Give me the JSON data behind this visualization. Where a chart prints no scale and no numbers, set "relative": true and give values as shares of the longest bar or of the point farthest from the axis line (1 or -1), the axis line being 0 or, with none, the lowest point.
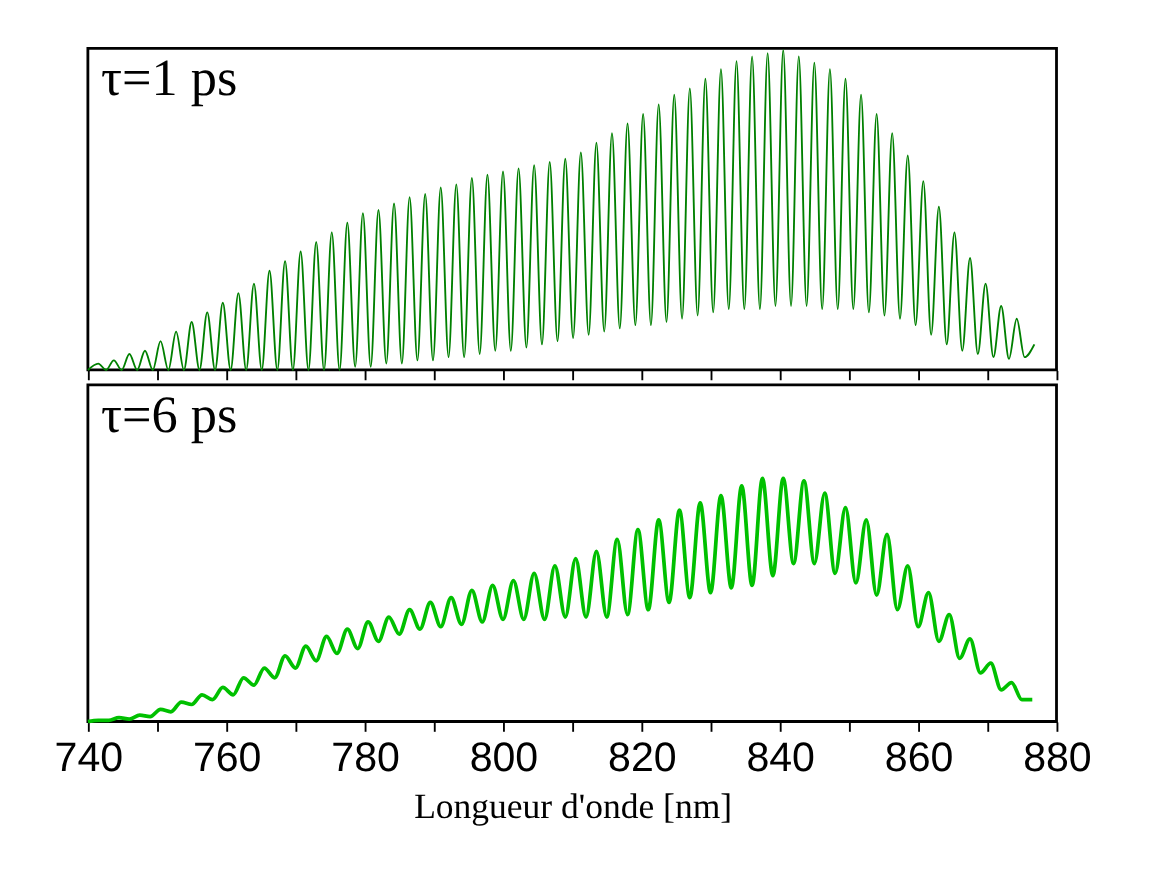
{
  "chart_data": [
    {
      "type": "line",
      "title": "τ=1 ps",
      "relative": true,
      "tick_labels": false,
      "line_style": "solid",
      "xlim": [
        740,
        880
      ],
      "xticks": [
        740,
        {
          "value": 750,
          "label": null
        },
        760,
        {
          "value": 770,
          "label": null
        },
        780,
        {
          "value": 790,
          "label": null
        },
        800,
        {
          "value": 810,
          "label": null
        },
        820,
        {
          "value": 830,
          "label": null
        },
        840,
        {
          "value": 850,
          "label": null
        },
        860,
        {
          "value": 870,
          "label": null
        },
        880
      ],
      "x": [
        740,
        741.5,
        742.63,
        743.75,
        744.88,
        746,
        747.13,
        748.25,
        749.38,
        750.5,
        751.63,
        752.75,
        753.88,
        755,
        756.13,
        757.25,
        758.38,
        759.5,
        760.63,
        761.75,
        762.88,
        764,
        765.13,
        766.25,
        767.38,
        768.5,
        769.63,
        770.75,
        771.88,
        773,
        774.13,
        775.25,
        776.38,
        777.5,
        778.63,
        779.75,
        780.88,
        782,
        783.13,
        784.25,
        785.38,
        786.5,
        787.63,
        788.75,
        789.88,
        791,
        792.13,
        793.25,
        794.38,
        795.5,
        796.63,
        797.75,
        798.88,
        800,
        801.13,
        802.25,
        803.38,
        804.5,
        805.63,
        806.75,
        807.88,
        809,
        810.13,
        811.25,
        812.38,
        813.5,
        814.63,
        815.75,
        816.88,
        818,
        819.13,
        820.25,
        821.38,
        822.5,
        823.63,
        824.75,
        825.88,
        827,
        828.13,
        829.25,
        830.38,
        831.5,
        832.63,
        833.75,
        834.88,
        836,
        837.13,
        838.25,
        839.38,
        840.5,
        841.63,
        842.75,
        843.88,
        845,
        846.13,
        847.25,
        848.38,
        849.5,
        850.63,
        851.75,
        852.88,
        854,
        855.13,
        856.25,
        857.38,
        858.5,
        859.63,
        860.75,
        861.88,
        863,
        864.13,
        865.25,
        866.38,
        867.5,
        868.63,
        869.75,
        870.88,
        872,
        873.13,
        874.25,
        875.38,
        876.8
      ],
      "series": [
        {
          "color": "#008000",
          "values": [
            0,
            0.02,
            0,
            0.03,
            0,
            0.05,
            0,
            0.06,
            0,
            0.09,
            0,
            0.12,
            0,
            0.15,
            0,
            0.18,
            0,
            0.21,
            0,
            0.24,
            0,
            0.27,
            0,
            0.31,
            0,
            0.34,
            0,
            0.37,
            0,
            0.4,
            0,
            0.43,
            0,
            0.46,
            0.01,
            0.49,
            0.01,
            0.5,
            0.02,
            0.52,
            0.02,
            0.54,
            0.03,
            0.55,
            0.03,
            0.57,
            0.04,
            0.58,
            0.04,
            0.6,
            0.05,
            0.61,
            0.06,
            0.62,
            0.06,
            0.63,
            0.07,
            0.64,
            0.08,
            0.65,
            0.09,
            0.66,
            0.1,
            0.68,
            0.11,
            0.71,
            0.12,
            0.74,
            0.13,
            0.77,
            0.14,
            0.8,
            0.14,
            0.83,
            0.15,
            0.86,
            0.16,
            0.88,
            0.17,
            0.91,
            0.18,
            0.94,
            0.19,
            0.965,
            0.19,
            0.98,
            0.19,
            0.99,
            0.2,
            1.0,
            0.2,
            0.98,
            0.2,
            0.96,
            0.19,
            0.94,
            0.19,
            0.91,
            0.19,
            0.86,
            0.18,
            0.8,
            0.17,
            0.74,
            0.16,
            0.67,
            0.14,
            0.59,
            0.11,
            0.51,
            0.08,
            0.43,
            0.06,
            0.35,
            0.05,
            0.27,
            0.04,
            0.2,
            0.035,
            0.16,
            0.04,
            0.08
          ]
        }
      ]
    },
    {
      "type": "line",
      "title": "τ=6 ps",
      "relative": true,
      "tick_labels": "x",
      "line_style": "solid",
      "xlabel": "Longueur d'onde [nm]",
      "xlim": [
        740,
        880
      ],
      "xticks": [
        740,
        {
          "value": 750,
          "label": null
        },
        760,
        {
          "value": 770,
          "label": null
        },
        780,
        {
          "value": 790,
          "label": null
        },
        800,
        {
          "value": 810,
          "label": null
        },
        820,
        {
          "value": 830,
          "label": null
        },
        840,
        {
          "value": 850,
          "label": null
        },
        860,
        {
          "value": 870,
          "label": null
        },
        880
      ],
      "x": [
        740,
        741.5,
        743,
        744.5,
        746,
        747.5,
        749,
        750.5,
        752,
        753.5,
        755,
        756.5,
        758,
        759.5,
        761,
        762.5,
        764,
        765.5,
        767,
        768.5,
        770,
        771.5,
        773,
        774.5,
        776,
        777.5,
        779,
        780.5,
        782,
        783.5,
        785,
        786.5,
        788,
        789.5,
        791,
        792.5,
        794,
        795.5,
        797,
        798.5,
        800,
        801.5,
        803,
        804.5,
        806,
        807.5,
        809,
        810.5,
        812,
        813.5,
        815,
        816.5,
        818,
        819.5,
        821,
        822.5,
        824,
        825.5,
        827,
        828.5,
        830,
        831.5,
        833,
        834.5,
        836,
        837.5,
        839,
        840.5,
        842,
        843.5,
        845,
        846.5,
        848,
        849.5,
        851,
        852.5,
        854,
        855.5,
        857,
        858.5,
        860,
        861.5,
        863,
        864.5,
        866,
        867.5,
        869,
        870.5,
        872,
        873.5,
        875,
        876.5
      ],
      "series": [
        {
          "color": "#00c000",
          "values": [
            0,
            0.005,
            0.005,
            0.016,
            0.01,
            0.026,
            0.02,
            0.05,
            0.04,
            0.08,
            0.07,
            0.11,
            0.09,
            0.14,
            0.11,
            0.18,
            0.15,
            0.22,
            0.18,
            0.27,
            0.22,
            0.31,
            0.25,
            0.35,
            0.28,
            0.38,
            0.3,
            0.41,
            0.33,
            0.43,
            0.36,
            0.46,
            0.38,
            0.49,
            0.39,
            0.51,
            0.4,
            0.54,
            0.41,
            0.56,
            0.42,
            0.58,
            0.42,
            0.61,
            0.42,
            0.64,
            0.43,
            0.67,
            0.43,
            0.7,
            0.43,
            0.75,
            0.44,
            0.79,
            0.46,
            0.83,
            0.49,
            0.87,
            0.51,
            0.9,
            0.53,
            0.93,
            0.55,
            0.97,
            0.56,
            1.0,
            0.6,
            1.0,
            0.65,
            0.99,
            0.65,
            0.94,
            0.61,
            0.88,
            0.57,
            0.83,
            0.52,
            0.77,
            0.46,
            0.64,
            0.39,
            0.53,
            0.33,
            0.44,
            0.26,
            0.34,
            0.2,
            0.24,
            0.13,
            0.16,
            0.09,
            0.09
          ]
        }
      ]
    }
  ]
}
